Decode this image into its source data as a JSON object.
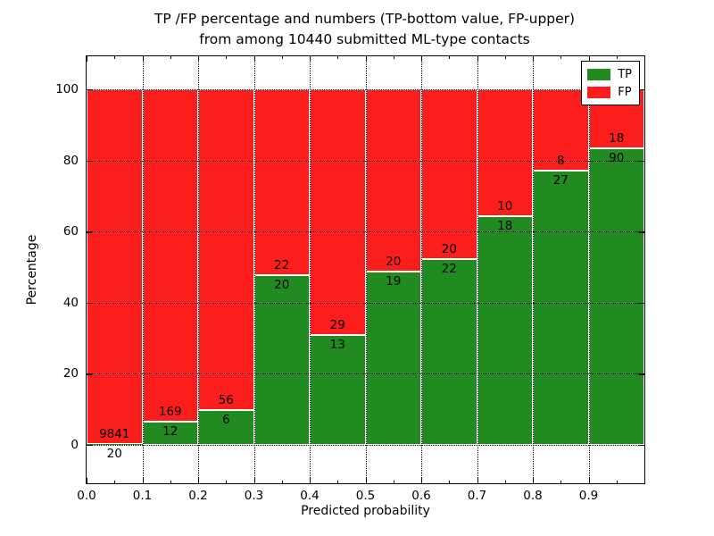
{
  "title": {
    "line1": "TP /FP percentage and numbers (TP-bottom value, FP-upper)",
    "line2": "from among 10440 submitted ML-type contacts"
  },
  "chart_data": {
    "type": "bar",
    "stacked": true,
    "title": "TP /FP percentage and numbers (TP-bottom value, FP-upper)\nfrom among 10440 submitted ML-type contacts",
    "xlabel": "Predicted probability",
    "ylabel": "Percentage",
    "xlim": [
      0,
      1.0
    ],
    "ylim": [
      -10.8,
      109.3
    ],
    "grid": "dotted",
    "legend_position": "upper right",
    "total_contacts": 10440,
    "x_tick_values": [
      0.0,
      0.1,
      0.2,
      0.3,
      0.4,
      0.5,
      0.6,
      0.7,
      0.8,
      0.9
    ],
    "x_tick_labels": [
      "0.0",
      "0.1",
      "0.2",
      "0.3",
      "0.4",
      "0.5",
      "0.6",
      "0.7",
      "0.8",
      "0.9"
    ],
    "x_minor_tick_values": [
      0.05,
      0.15,
      0.25,
      0.35,
      0.45,
      0.55,
      0.65,
      0.75,
      0.85,
      0.95
    ],
    "y_tick_values": [
      0,
      20,
      40,
      60,
      80,
      100
    ],
    "y_tick_labels": [
      "0",
      "20",
      "40",
      "60",
      "80",
      "100"
    ],
    "colors": {
      "tp": "#218a21",
      "fp": "#fc1d1d"
    },
    "legend": [
      {
        "label": "TP",
        "color": "#218a21"
      },
      {
        "label": "FP",
        "color": "#fc1d1d"
      }
    ],
    "bins": [
      {
        "start": 0.0,
        "end": 0.1,
        "tp": 20,
        "fp": 9841,
        "tp_pct": 0.2,
        "fp_pct": 99.8
      },
      {
        "start": 0.1,
        "end": 0.2,
        "tp": 12,
        "fp": 169,
        "tp_pct": 6.63,
        "fp_pct": 93.37
      },
      {
        "start": 0.2,
        "end": 0.3,
        "tp": 6,
        "fp": 56,
        "tp_pct": 9.68,
        "fp_pct": 90.32
      },
      {
        "start": 0.3,
        "end": 0.4,
        "tp": 20,
        "fp": 22,
        "tp_pct": 47.62,
        "fp_pct": 52.38
      },
      {
        "start": 0.4,
        "end": 0.5,
        "tp": 13,
        "fp": 29,
        "tp_pct": 30.95,
        "fp_pct": 69.05
      },
      {
        "start": 0.5,
        "end": 0.6,
        "tp": 19,
        "fp": 20,
        "tp_pct": 48.72,
        "fp_pct": 51.28
      },
      {
        "start": 0.6,
        "end": 0.7,
        "tp": 22,
        "fp": 20,
        "tp_pct": 52.38,
        "fp_pct": 47.62
      },
      {
        "start": 0.7,
        "end": 0.8,
        "tp": 18,
        "fp": 10,
        "tp_pct": 64.29,
        "fp_pct": 35.71
      },
      {
        "start": 0.8,
        "end": 0.9,
        "tp": 27,
        "fp": 8,
        "tp_pct": 77.14,
        "fp_pct": 22.86
      },
      {
        "start": 0.9,
        "end": 1.0,
        "tp": 90,
        "fp": 18,
        "tp_pct": 83.33,
        "fp_pct": 16.67
      }
    ]
  }
}
